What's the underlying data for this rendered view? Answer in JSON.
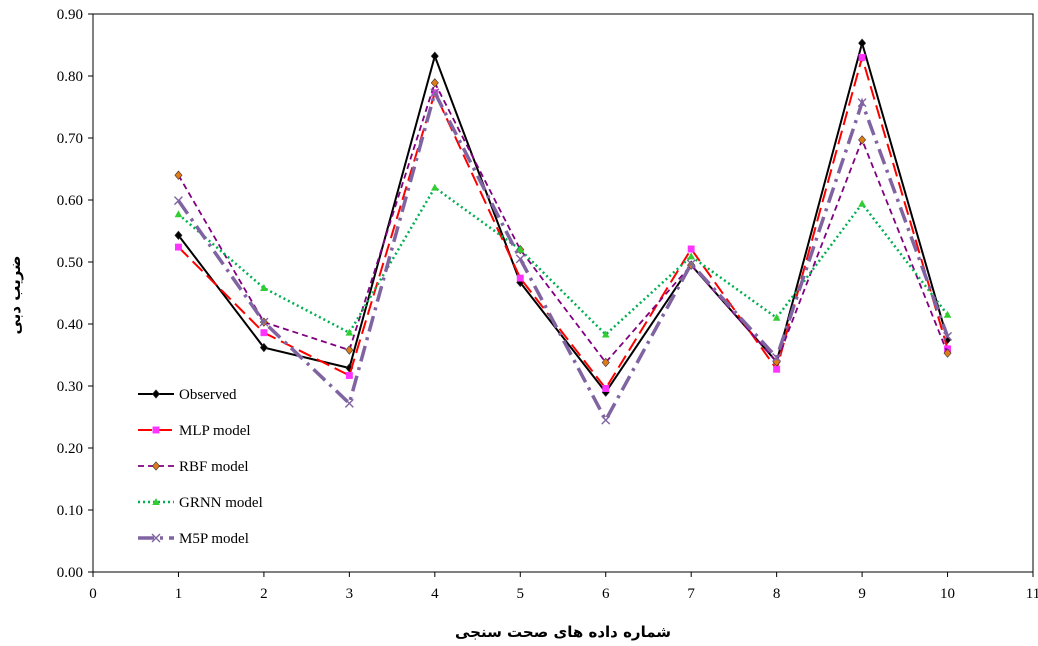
{
  "chart_data": {
    "type": "line",
    "title": "",
    "xlabel": "شماره داده های صحت سنجی",
    "ylabel": "ضریب دبی",
    "xlim": [
      0,
      11
    ],
    "ylim": [
      0,
      0.9
    ],
    "x_ticks": [
      "0",
      "1",
      "2",
      "3",
      "4",
      "5",
      "6",
      "7",
      "8",
      "9",
      "10",
      "11"
    ],
    "y_ticks": [
      "0.00",
      "0.10",
      "0.20",
      "0.30",
      "0.40",
      "0.50",
      "0.60",
      "0.70",
      "0.80",
      "0.90"
    ],
    "grid": false,
    "legend_position": "bottom-left",
    "x": [
      1,
      2,
      3,
      4,
      5,
      6,
      7,
      8,
      9,
      10
    ],
    "series": [
      {
        "name": "Observed",
        "color": "#000000",
        "marker": "diamond",
        "line_style": "solid",
        "values": [
          0.543,
          0.362,
          0.329,
          0.832,
          0.467,
          0.29,
          0.495,
          0.339,
          0.853,
          0.375
        ]
      },
      {
        "name": "MLP model",
        "color": "#ff0000",
        "marker_color": "#ff33ff",
        "marker": "square",
        "line_style": "long-dash",
        "values": [
          0.524,
          0.386,
          0.317,
          0.773,
          0.474,
          0.296,
          0.521,
          0.327,
          0.83,
          0.36
        ]
      },
      {
        "name": "RBF model",
        "color": "#800080",
        "marker_color": "#e07b1a",
        "marker": "diamond",
        "line_style": "short-dash",
        "values": [
          0.64,
          0.403,
          0.358,
          0.789,
          0.52,
          0.338,
          0.495,
          0.339,
          0.697,
          0.353
        ]
      },
      {
        "name": "GRNN model",
        "color": "#00b050",
        "marker_color": "#33cc33",
        "marker": "triangle",
        "line_style": "dotted",
        "values": [
          0.577,
          0.458,
          0.386,
          0.62,
          0.52,
          0.383,
          0.509,
          0.41,
          0.594,
          0.415
        ]
      },
      {
        "name": "M5P model",
        "color": "#8064a2",
        "marker_color": "#8064a2",
        "marker": "x",
        "line_style": "dash-dot",
        "values": [
          0.599,
          0.403,
          0.272,
          0.773,
          0.505,
          0.245,
          0.497,
          0.346,
          0.757,
          0.38
        ]
      }
    ]
  }
}
